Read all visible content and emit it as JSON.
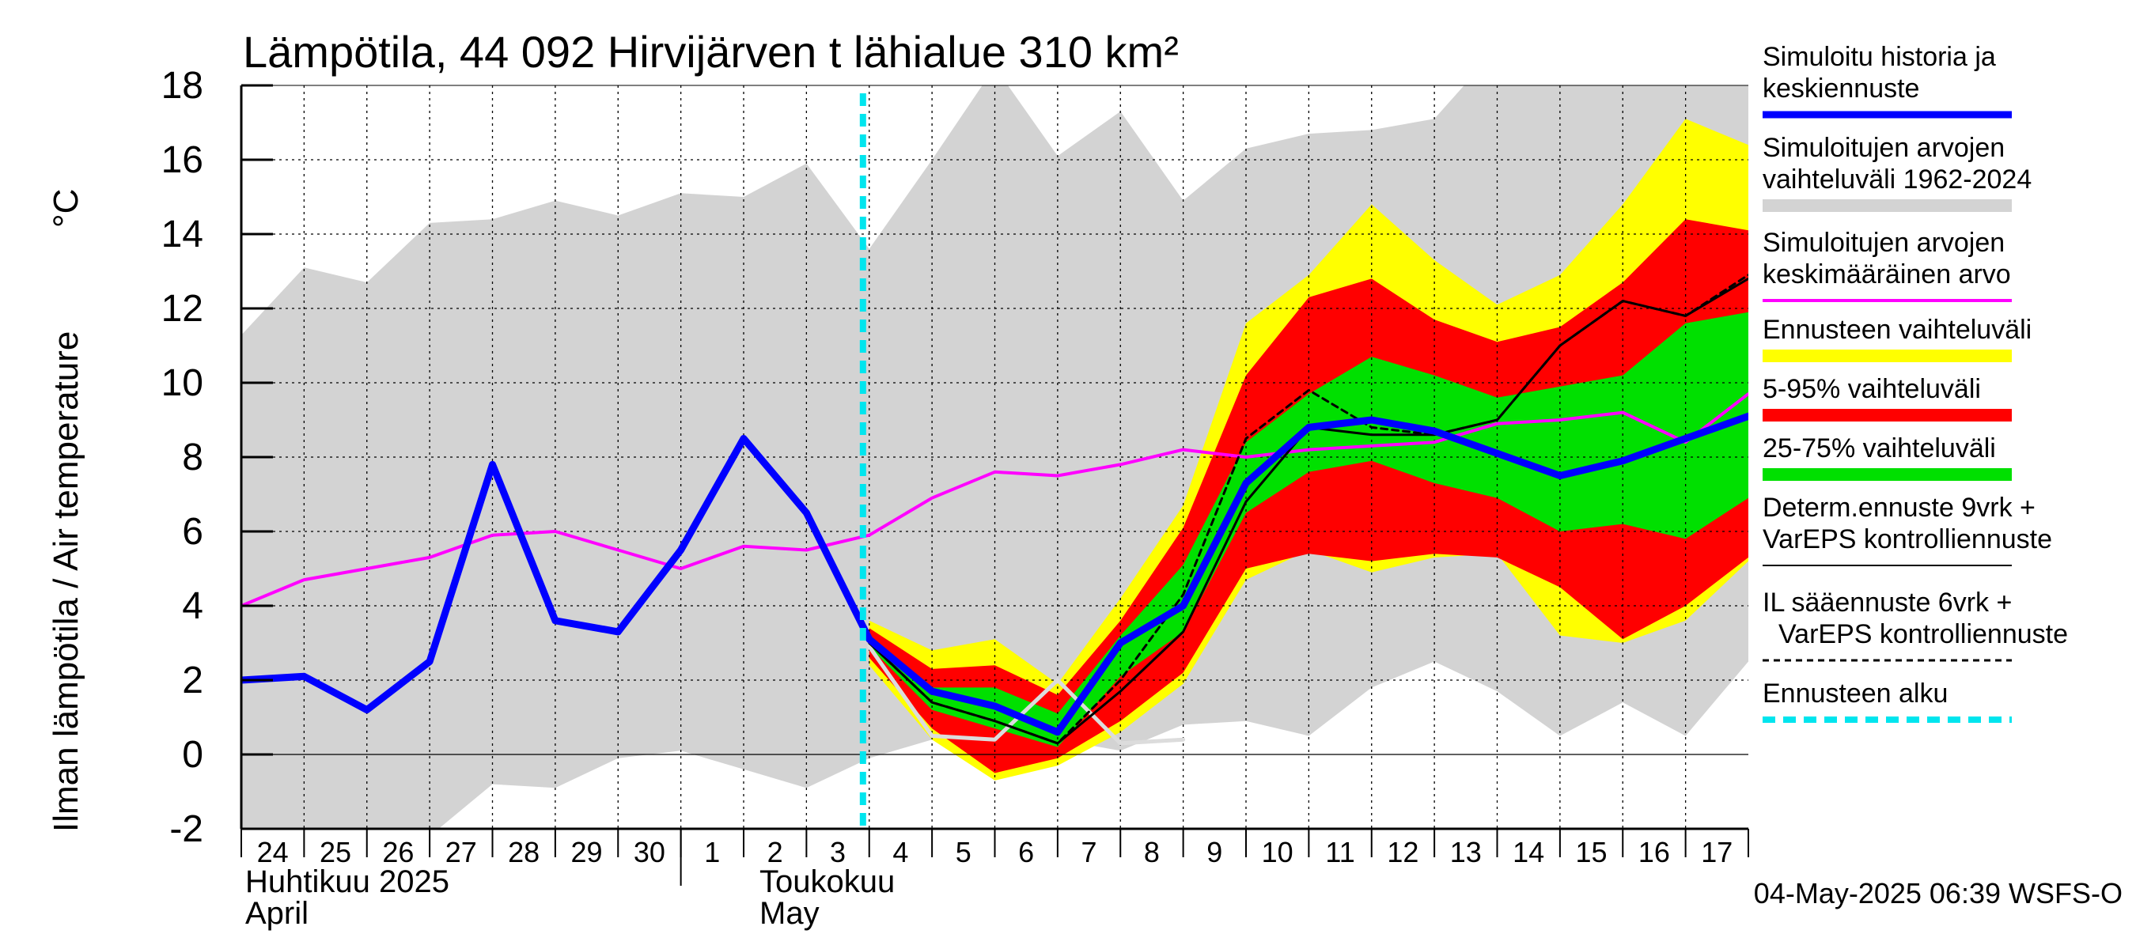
{
  "chart_data": {
    "type": "area",
    "title": "Lämpötila, 44 092 Hirvijärven t lähialue 310 km²",
    "ylabel": "Ilman lämpötila / Air temperature",
    "yunit": "°C",
    "ylim": [
      -2,
      18
    ],
    "yticks": [
      -2,
      0,
      2,
      4,
      6,
      8,
      10,
      12,
      14,
      16,
      18
    ],
    "x_start": "2025-04-24",
    "x_end": "2025-05-18",
    "xtick_labels": [
      "24",
      "25",
      "26",
      "27",
      "28",
      "29",
      "30",
      "1",
      "2",
      "3",
      "4",
      "5",
      "6",
      "7",
      "8",
      "9",
      "10",
      "11",
      "12",
      "13",
      "14",
      "15",
      "16",
      "17"
    ],
    "month_labels": [
      {
        "fi": "Huhtikuu  2025",
        "en": "April",
        "date": "2025-04-24"
      },
      {
        "fi": "Toukokuu",
        "en": "May",
        "date": "2025-05-01"
      }
    ],
    "forecast_start": "2025-05-04",
    "grid": true,
    "legend_position": "right",
    "timestamp": "04-May-2025 06:39 WSFS-O",
    "legend": [
      {
        "label": "Simuloitu historia ja keskiennuste",
        "color": "#0000ff",
        "style": "thick-line"
      },
      {
        "label": "Simuloitujen arvojen vaihteluväli 1962-2024",
        "color": "#d3d3d3",
        "style": "band"
      },
      {
        "label": "Simuloitujen arvojen keskimääräinen arvo",
        "color": "#ff00ff",
        "style": "line"
      },
      {
        "label": "Ennusteen vaihteluväli",
        "color": "#ffff00",
        "style": "band"
      },
      {
        "label": "5-95% vaihteluväli",
        "color": "#ff0000",
        "style": "band"
      },
      {
        "label": "25-75% vaihteluväli",
        "color": "#00e000",
        "style": "band"
      },
      {
        "label": "Determ.ennuste 9vrk + VarEPS kontrolliennuste",
        "color": "#000000",
        "style": "line"
      },
      {
        "label": "IL sääennuste 6vrk  + VarEPS kontrolliennuste",
        "color": "#000000",
        "style": "dashed"
      },
      {
        "label": "Ennusteen alku",
        "color": "#00e5ee",
        "style": "dashed-thick"
      }
    ],
    "series": [
      {
        "name": "Simulated history range 1962-2024 (upper)",
        "key": "hist_max",
        "x": [
          -0.1,
          1,
          2,
          3,
          4,
          5,
          6,
          7,
          8,
          9,
          10,
          11,
          12,
          13,
          14,
          15,
          16,
          17,
          18,
          19,
          20,
          21,
          22,
          23,
          24,
          24.1
        ],
        "y": [
          11.1,
          13.1,
          12.7,
          14.3,
          14.4,
          14.9,
          14.5,
          15.1,
          15.0,
          15.9,
          13.6,
          16.0,
          18.5,
          16.1,
          17.3,
          14.9,
          16.3,
          16.7,
          16.8,
          17.1,
          19.0,
          19.0,
          19.0,
          19.0,
          19.0,
          19.0
        ]
      },
      {
        "name": "Simulated history range 1962-2024 (lower)",
        "key": "hist_min",
        "x": [
          -0.1,
          1,
          2,
          3,
          4,
          5,
          6,
          7,
          8,
          9,
          10,
          11,
          12,
          13,
          14,
          15,
          16,
          17,
          18,
          19,
          20,
          21,
          22,
          23,
          24,
          24.1
        ],
        "y": [
          -3.0,
          -3.0,
          -3.0,
          -2.2,
          -0.8,
          -0.9,
          -0.1,
          0.1,
          -0.4,
          -0.9,
          -0.1,
          0.4,
          0.5,
          0.4,
          0.1,
          0.8,
          0.9,
          0.5,
          1.8,
          2.5,
          1.7,
          0.5,
          1.4,
          0.5,
          2.5,
          2.5
        ]
      },
      {
        "name": "Forecast range (upper)",
        "key": "fc_max",
        "x": [
          10,
          11,
          12,
          13,
          14,
          15,
          16,
          17,
          18,
          19,
          20,
          21,
          22,
          23,
          24
        ],
        "y": [
          3.6,
          2.8,
          3.1,
          1.9,
          4.2,
          6.7,
          11.6,
          12.9,
          14.8,
          13.3,
          12.1,
          12.9,
          14.8,
          17.1,
          16.4
        ]
      },
      {
        "name": "Forecast range (lower)",
        "key": "fc_min",
        "x": [
          10,
          11,
          12,
          13,
          14,
          15,
          16,
          17,
          18,
          19,
          20,
          21,
          22,
          23,
          24
        ],
        "y": [
          2.4,
          0.4,
          -0.7,
          -0.3,
          0.6,
          1.9,
          4.7,
          5.5,
          4.9,
          5.3,
          5.4,
          3.2,
          3.0,
          3.6,
          5.2
        ]
      },
      {
        "name": "5-95% range (upper)",
        "key": "p95",
        "x": [
          10,
          11,
          12,
          13,
          14,
          15,
          16,
          17,
          18,
          19,
          20,
          21,
          22,
          23,
          24
        ],
        "y": [
          3.4,
          2.3,
          2.4,
          1.6,
          3.6,
          6.1,
          10.2,
          12.3,
          12.8,
          11.7,
          11.1,
          11.5,
          12.7,
          14.4,
          14.1
        ]
      },
      {
        "name": "5-95% range (lower)",
        "key": "p05",
        "x": [
          10,
          11,
          12,
          13,
          14,
          15,
          16,
          17,
          18,
          19,
          20,
          21,
          22,
          23,
          24
        ],
        "y": [
          2.6,
          0.7,
          -0.5,
          -0.1,
          0.9,
          2.2,
          5.0,
          5.4,
          5.2,
          5.4,
          5.3,
          4.5,
          3.1,
          4.0,
          5.3
        ]
      },
      {
        "name": "25-75% range (upper)",
        "key": "p75",
        "x": [
          10,
          11,
          12,
          13,
          14,
          15,
          16,
          17,
          18,
          19,
          20,
          21,
          22,
          23,
          24
        ],
        "y": [
          3.1,
          1.8,
          1.8,
          1.1,
          3.2,
          5.1,
          8.4,
          9.7,
          10.7,
          10.2,
          9.6,
          9.9,
          10.2,
          11.6,
          11.9
        ]
      },
      {
        "name": "25-75% range (lower)",
        "key": "p25",
        "x": [
          10,
          11,
          12,
          13,
          14,
          15,
          16,
          17,
          18,
          19,
          20,
          21,
          22,
          23,
          24
        ],
        "y": [
          2.9,
          1.2,
          0.7,
          0.2,
          2.1,
          3.3,
          6.5,
          7.6,
          7.9,
          7.3,
          6.9,
          6.0,
          6.2,
          5.8,
          6.9
        ]
      },
      {
        "name": "Simulated history mean",
        "key": "hist_mean",
        "x": [
          0,
          1,
          2,
          3,
          4,
          5,
          6,
          7,
          8,
          9,
          10,
          11,
          12,
          13,
          14,
          15,
          16,
          17,
          18,
          19,
          20,
          21,
          22,
          23,
          24
        ],
        "y": [
          4.0,
          4.7,
          5.0,
          5.3,
          5.9,
          6.0,
          5.5,
          5.0,
          5.6,
          5.5,
          5.9,
          6.9,
          7.6,
          7.5,
          7.8,
          8.2,
          8.0,
          8.2,
          8.3,
          8.4,
          8.9,
          9.0,
          9.2,
          8.4,
          9.7
        ]
      },
      {
        "name": "Determ.ennuste 9vrk + VarEPS kontrolliennuste",
        "key": "determ",
        "x": [
          8,
          9,
          10,
          11,
          12,
          13,
          14,
          15,
          16,
          17,
          18,
          19,
          20,
          21,
          22,
          23,
          24
        ],
        "y": [
          8.5,
          6.5,
          3.0,
          1.4,
          0.9,
          0.3,
          1.7,
          3.3,
          6.8,
          8.8,
          8.6,
          8.6,
          9.0,
          11.0,
          12.2,
          11.8,
          12.8
        ]
      },
      {
        "name": "IL sääennuste 6vrk + VarEPS kontrolliennuste",
        "key": "il",
        "x": [
          8,
          9,
          10,
          11,
          12,
          13,
          14,
          15,
          16,
          17,
          18,
          19,
          20,
          21,
          22,
          23,
          24
        ],
        "y": [
          8.5,
          6.5,
          3.0,
          1.4,
          0.9,
          0.3,
          2.0,
          4.3,
          8.5,
          9.8,
          8.8,
          8.6,
          9.0,
          11.0,
          12.2,
          11.8,
          12.9
        ]
      },
      {
        "name": "Light grey member trace",
        "key": "grey_trace",
        "x": [
          10,
          11,
          12,
          13,
          14,
          15
        ],
        "y": [
          2.9,
          0.5,
          0.4,
          2.0,
          0.3,
          0.4
        ]
      },
      {
        "name": "Simuloitu historia ja keskiennuste",
        "key": "main",
        "x": [
          0,
          1,
          2,
          3,
          4,
          5,
          6,
          7,
          8,
          9,
          10,
          11,
          12,
          13,
          14,
          15,
          16,
          17,
          18,
          19,
          20,
          21,
          22,
          23,
          24
        ],
        "y": [
          2.0,
          2.1,
          1.2,
          2.5,
          7.8,
          3.6,
          3.3,
          5.5,
          8.5,
          6.5,
          3.1,
          1.7,
          1.3,
          0.6,
          3.0,
          4.0,
          7.3,
          8.8,
          9.0,
          8.7,
          8.1,
          7.5,
          7.9,
          8.5,
          9.1
        ]
      }
    ]
  }
}
